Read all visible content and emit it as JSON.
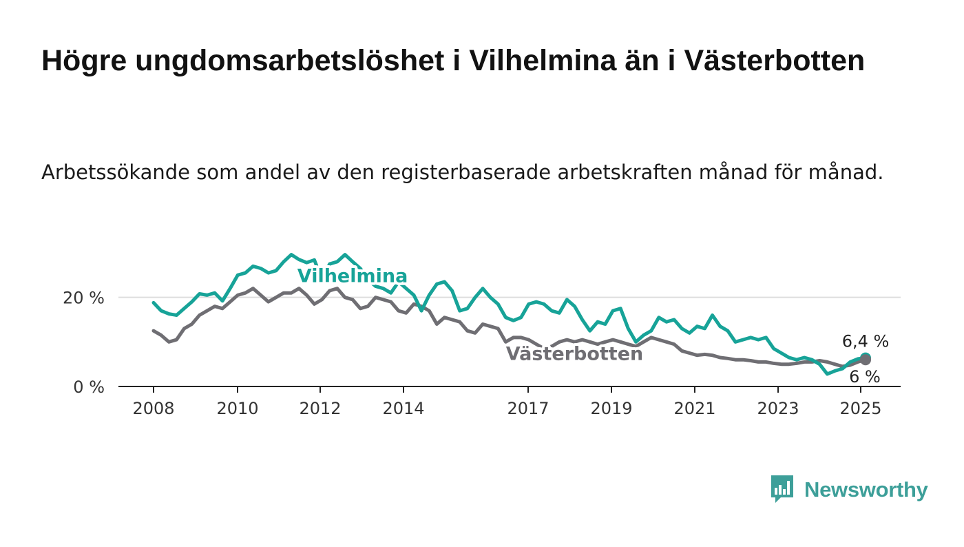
{
  "header": {
    "title": "Högre ungdomsarbetslöshet i Vilhelmina än i Västerbotten",
    "subtitle": "Arbetssökande som andel av den registerbaserade arbetskraften månad för månad."
  },
  "brand": {
    "name": "Newsworthy",
    "icon": "newsworthy-logo-icon",
    "color": "#3d9f99"
  },
  "chart_data": {
    "type": "line",
    "title": "Högre ungdomsarbetslöshet i Vilhelmina än i Västerbotten",
    "subtitle": "Arbetssökande som andel av den registerbaserade arbetskraften månad för månad.",
    "xlabel": "",
    "ylabel": "",
    "x_range": [
      2007.1,
      2025.9
    ],
    "ylim": [
      0,
      30
    ],
    "y_ticks": [
      0,
      20
    ],
    "y_tick_labels": [
      "0 %",
      "20 %"
    ],
    "x_ticks": [
      2008,
      2010,
      2012,
      2014,
      2017,
      2019,
      2021,
      2023,
      2025
    ],
    "x_tick_labels": [
      "2008",
      "2010",
      "2012",
      "2014",
      "2017",
      "2019",
      "2021",
      "2023",
      "2025"
    ],
    "grid": "horizontal",
    "legend": "direct labels on lines",
    "series": [
      {
        "name": "Vilhelmina",
        "color": "#17a398",
        "end_label": "6,4 %",
        "points": [
          [
            2008.0,
            18.8
          ],
          [
            2008.2,
            17.0
          ],
          [
            2008.4,
            16.3
          ],
          [
            2008.6,
            16.0
          ],
          [
            2008.8,
            17.5
          ],
          [
            2009.0,
            19.0
          ],
          [
            2009.2,
            20.8
          ],
          [
            2009.4,
            20.5
          ],
          [
            2009.6,
            21.0
          ],
          [
            2009.8,
            19.2
          ],
          [
            2010.0,
            22.0
          ],
          [
            2010.2,
            25.0
          ],
          [
            2010.4,
            25.5
          ],
          [
            2010.6,
            27.0
          ],
          [
            2010.8,
            26.5
          ],
          [
            2011.0,
            25.5
          ],
          [
            2011.2,
            26.0
          ],
          [
            2011.4,
            28.0
          ],
          [
            2011.6,
            29.6
          ],
          [
            2011.8,
            28.5
          ],
          [
            2012.0,
            27.8
          ],
          [
            2012.2,
            28.4
          ],
          [
            2012.4,
            24.0
          ],
          [
            2012.6,
            27.5
          ],
          [
            2012.8,
            28.0
          ],
          [
            2013.0,
            29.6
          ],
          [
            2013.2,
            28.0
          ],
          [
            2013.4,
            26.5
          ],
          [
            2013.6,
            24.0
          ],
          [
            2013.8,
            22.5
          ],
          [
            2014.0,
            22.0
          ],
          [
            2014.2,
            21.0
          ],
          [
            2014.4,
            23.5
          ],
          [
            2014.6,
            22.0
          ],
          [
            2014.8,
            20.5
          ],
          [
            2015.0,
            17.0
          ],
          [
            2015.2,
            20.5
          ],
          [
            2015.4,
            23.0
          ],
          [
            2015.6,
            23.5
          ],
          [
            2015.8,
            21.5
          ],
          [
            2016.0,
            17.0
          ],
          [
            2016.2,
            17.5
          ],
          [
            2016.4,
            20.0
          ],
          [
            2016.6,
            22.0
          ],
          [
            2016.8,
            20.0
          ],
          [
            2017.0,
            18.5
          ],
          [
            2017.2,
            15.5
          ],
          [
            2017.4,
            14.8
          ],
          [
            2017.6,
            15.5
          ],
          [
            2017.8,
            18.5
          ],
          [
            2018.0,
            19.0
          ],
          [
            2018.2,
            18.5
          ],
          [
            2018.4,
            17.0
          ],
          [
            2018.6,
            16.5
          ],
          [
            2018.8,
            19.5
          ],
          [
            2019.0,
            18.0
          ],
          [
            2019.2,
            15.0
          ],
          [
            2019.4,
            12.5
          ],
          [
            2019.6,
            14.5
          ],
          [
            2019.8,
            14.0
          ],
          [
            2020.0,
            17.0
          ],
          [
            2020.2,
            17.5
          ],
          [
            2020.4,
            13.0
          ],
          [
            2020.6,
            10.0
          ],
          [
            2020.8,
            11.5
          ],
          [
            2021.0,
            12.5
          ],
          [
            2021.2,
            15.5
          ],
          [
            2021.4,
            14.5
          ],
          [
            2021.6,
            15.0
          ],
          [
            2021.8,
            13.0
          ],
          [
            2022.0,
            12.0
          ],
          [
            2022.2,
            13.5
          ],
          [
            2022.4,
            13.0
          ],
          [
            2022.6,
            16.0
          ],
          [
            2022.8,
            13.5
          ],
          [
            2023.0,
            12.5
          ],
          [
            2023.2,
            10.0
          ],
          [
            2023.4,
            10.5
          ],
          [
            2023.6,
            11.0
          ],
          [
            2023.8,
            10.5
          ],
          [
            2024.0,
            11.0
          ],
          [
            2024.2,
            8.5
          ],
          [
            2024.4,
            7.5
          ],
          [
            2024.6,
            6.5
          ],
          [
            2024.8,
            6.0
          ],
          [
            2025.0,
            6.5
          ],
          [
            2025.2,
            6.0
          ],
          [
            2025.4,
            5.0
          ],
          [
            2025.6,
            2.8
          ],
          [
            2025.8,
            3.5
          ],
          [
            2026.0,
            4.0
          ],
          [
            2026.2,
            5.5
          ],
          [
            2026.4,
            6.2
          ],
          [
            2026.6,
            6.4
          ]
        ]
      },
      {
        "name": "Västerbotten",
        "color": "#6f6e73",
        "end_label": "6 %",
        "points": [
          [
            2008.0,
            12.5
          ],
          [
            2008.2,
            11.5
          ],
          [
            2008.4,
            10.0
          ],
          [
            2008.6,
            10.5
          ],
          [
            2008.8,
            13.0
          ],
          [
            2009.0,
            14.0
          ],
          [
            2009.2,
            16.0
          ],
          [
            2009.4,
            17.0
          ],
          [
            2009.6,
            18.0
          ],
          [
            2009.8,
            17.5
          ],
          [
            2010.0,
            19.0
          ],
          [
            2010.2,
            20.5
          ],
          [
            2010.4,
            21.0
          ],
          [
            2010.6,
            22.0
          ],
          [
            2010.8,
            20.5
          ],
          [
            2011.0,
            19.0
          ],
          [
            2011.2,
            20.0
          ],
          [
            2011.4,
            21.0
          ],
          [
            2011.6,
            21.0
          ],
          [
            2011.8,
            22.0
          ],
          [
            2012.0,
            20.5
          ],
          [
            2012.2,
            18.5
          ],
          [
            2012.4,
            19.5
          ],
          [
            2012.6,
            21.5
          ],
          [
            2012.8,
            22.0
          ],
          [
            2013.0,
            20.0
          ],
          [
            2013.2,
            19.5
          ],
          [
            2013.4,
            17.5
          ],
          [
            2013.6,
            18.0
          ],
          [
            2013.8,
            20.0
          ],
          [
            2014.0,
            19.5
          ],
          [
            2014.2,
            19.0
          ],
          [
            2014.4,
            17.0
          ],
          [
            2014.6,
            16.5
          ],
          [
            2014.8,
            18.5
          ],
          [
            2015.0,
            18.0
          ],
          [
            2015.2,
            17.0
          ],
          [
            2015.4,
            14.0
          ],
          [
            2015.6,
            15.5
          ],
          [
            2015.8,
            15.0
          ],
          [
            2016.0,
            14.5
          ],
          [
            2016.2,
            12.5
          ],
          [
            2016.4,
            12.0
          ],
          [
            2016.6,
            14.0
          ],
          [
            2016.8,
            13.5
          ],
          [
            2017.0,
            13.0
          ],
          [
            2017.2,
            10.0
          ],
          [
            2017.4,
            11.0
          ],
          [
            2017.6,
            11.0
          ],
          [
            2017.8,
            10.5
          ],
          [
            2018.0,
            9.5
          ],
          [
            2018.2,
            8.5
          ],
          [
            2018.4,
            9.0
          ],
          [
            2018.6,
            10.0
          ],
          [
            2018.8,
            10.5
          ],
          [
            2019.0,
            10.0
          ],
          [
            2019.2,
            10.5
          ],
          [
            2019.4,
            10.0
          ],
          [
            2019.6,
            9.5
          ],
          [
            2019.8,
            10.0
          ],
          [
            2020.0,
            10.5
          ],
          [
            2020.2,
            10.0
          ],
          [
            2020.4,
            9.5
          ],
          [
            2020.6,
            9.0
          ],
          [
            2020.8,
            10.0
          ],
          [
            2021.0,
            11.0
          ],
          [
            2021.2,
            10.5
          ],
          [
            2021.4,
            10.0
          ],
          [
            2021.6,
            9.5
          ],
          [
            2021.8,
            8.0
          ],
          [
            2022.0,
            7.5
          ],
          [
            2022.2,
            7.0
          ],
          [
            2022.4,
            7.2
          ],
          [
            2022.6,
            7.0
          ],
          [
            2022.8,
            6.5
          ],
          [
            2023.0,
            6.3
          ],
          [
            2023.2,
            6.0
          ],
          [
            2023.4,
            6.0
          ],
          [
            2023.6,
            5.8
          ],
          [
            2023.8,
            5.5
          ],
          [
            2024.0,
            5.5
          ],
          [
            2024.2,
            5.2
          ],
          [
            2024.4,
            5.0
          ],
          [
            2024.6,
            5.0
          ],
          [
            2024.8,
            5.2
          ],
          [
            2025.0,
            5.5
          ],
          [
            2025.2,
            5.5
          ],
          [
            2025.4,
            5.8
          ],
          [
            2025.6,
            5.5
          ],
          [
            2025.8,
            5.0
          ],
          [
            2026.0,
            4.5
          ],
          [
            2026.2,
            4.8
          ],
          [
            2026.4,
            5.5
          ],
          [
            2026.6,
            6.0
          ]
        ]
      }
    ],
    "annotations": [
      {
        "text": "Vilhelmina",
        "series": "Vilhelmina",
        "x": 2013.2,
        "y": 25.0
      },
      {
        "text": "Västerbotten",
        "series": "Västerbotten",
        "x": 2019.0,
        "y": 7.5
      }
    ]
  }
}
